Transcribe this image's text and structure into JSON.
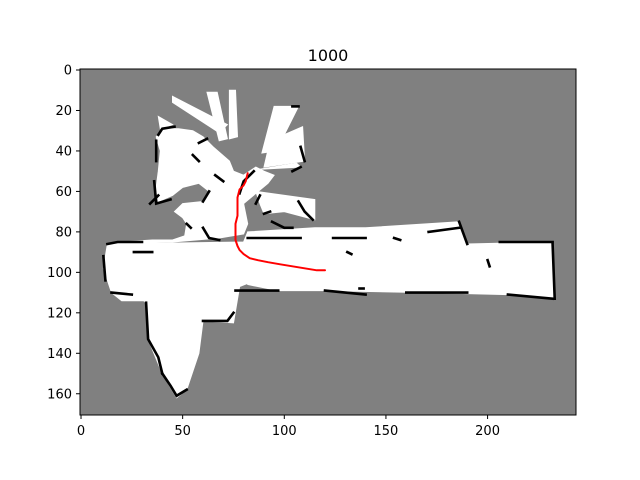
{
  "title": "1000",
  "chart_data": {
    "type": "heatmap",
    "title": "1000",
    "xlabel": "",
    "ylabel": "",
    "xlim": [
      -0.5,
      243.5
    ],
    "ylim": [
      170.5,
      -0.5
    ],
    "y_inverted": true,
    "x_ticks": [
      0,
      50,
      100,
      150,
      200
    ],
    "y_ticks": [
      0,
      20,
      40,
      60,
      80,
      100,
      120,
      140,
      160
    ],
    "grid": false,
    "colors": {
      "unknown": "#808080",
      "free": "#ffffff",
      "occupied": "#000000",
      "path": "#ff0000"
    },
    "free_regions": [
      [
        [
          13,
          86
        ],
        [
          45,
          85
        ],
        [
          68,
          83
        ],
        [
          80,
          81
        ],
        [
          82,
          76
        ],
        [
          80,
          66
        ],
        [
          86,
          61
        ],
        [
          92,
          56
        ],
        [
          95,
          52
        ],
        [
          90,
          50
        ],
        [
          86,
          48
        ],
        [
          80,
          52
        ],
        [
          75,
          50
        ],
        [
          73,
          45
        ],
        [
          65,
          38
        ],
        [
          60,
          33
        ],
        [
          55,
          30
        ],
        [
          48,
          29
        ],
        [
          40,
          29
        ],
        [
          37,
          33
        ],
        [
          39,
          40
        ],
        [
          38,
          50
        ],
        [
          37,
          58
        ],
        [
          38,
          65
        ],
        [
          45,
          62
        ],
        [
          50,
          58
        ],
        [
          58,
          56
        ],
        [
          63,
          60
        ],
        [
          60,
          65
        ],
        [
          50,
          66
        ],
        [
          46,
          70
        ],
        [
          50,
          73
        ],
        [
          52,
          76
        ],
        [
          51,
          82
        ],
        [
          45,
          84
        ],
        [
          35,
          84
        ],
        [
          20,
          85
        ],
        [
          13,
          86
        ]
      ],
      [
        [
          45,
          27
        ],
        [
          38,
          23
        ],
        [
          39,
          29
        ]
      ],
      [
        [
          45,
          13
        ],
        [
          72,
          27
        ],
        [
          68,
          31
        ],
        [
          45,
          16
        ]
      ],
      [
        [
          62,
          11
        ],
        [
          67,
          11
        ],
        [
          72,
          34
        ],
        [
          68,
          35
        ]
      ],
      [
        [
          73,
          10
        ],
        [
          76,
          10
        ],
        [
          77,
          33
        ],
        [
          73,
          34
        ]
      ],
      [
        [
          95,
          18
        ],
        [
          107,
          18
        ],
        [
          96,
          40
        ],
        [
          89,
          41
        ]
      ],
      [
        [
          93,
          35
        ],
        [
          109,
          28
        ],
        [
          110,
          45
        ],
        [
          90,
          48
        ]
      ],
      [
        [
          88,
          49
        ],
        [
          108,
          48
        ],
        [
          106,
          46
        ]
      ],
      [
        [
          86,
          60
        ],
        [
          115,
          64
        ],
        [
          115,
          74
        ],
        [
          100,
          70
        ],
        [
          90,
          71
        ],
        [
          88,
          66
        ]
      ],
      [
        [
          82,
          80
        ],
        [
          115,
          78
        ],
        [
          140,
          78
        ],
        [
          186,
          75
        ],
        [
          190,
          86
        ],
        [
          232,
          85
        ],
        [
          233,
          113
        ],
        [
          210,
          111
        ],
        [
          170,
          110
        ],
        [
          120,
          109
        ],
        [
          97,
          109
        ],
        [
          82,
          106
        ],
        [
          80,
          95
        ]
      ],
      [
        [
          13,
          86
        ],
        [
          80,
          85
        ],
        [
          82,
          80
        ],
        [
          83,
          105
        ],
        [
          78,
          107
        ],
        [
          75,
          125
        ],
        [
          60,
          124
        ],
        [
          58,
          140
        ],
        [
          52,
          158
        ],
        [
          47,
          162
        ],
        [
          40,
          150
        ],
        [
          33,
          133
        ],
        [
          32,
          114
        ],
        [
          20,
          114
        ],
        [
          15,
          110
        ],
        [
          11,
          98
        ],
        [
          13,
          86
        ]
      ],
      [
        [
          24,
          105
        ],
        [
          72,
          103
        ],
        [
          75,
          120
        ],
        [
          34,
          118
        ]
      ]
    ],
    "occupied_segments": [
      [
        [
          38,
          32
        ],
        [
          40,
          29
        ],
        [
          46,
          28
        ]
      ],
      [
        [
          37,
          35
        ],
        [
          37,
          45
        ]
      ],
      [
        [
          36,
          55
        ],
        [
          37,
          66
        ],
        [
          44,
          64
        ]
      ],
      [
        [
          38,
          62
        ],
        [
          34,
          66
        ]
      ],
      [
        [
          58,
          36
        ],
        [
          62,
          34
        ]
      ],
      [
        [
          55,
          42
        ],
        [
          58,
          45
        ]
      ],
      [
        [
          66,
          52
        ],
        [
          70,
          55
        ]
      ],
      [
        [
          63,
          60
        ],
        [
          60,
          65
        ]
      ],
      [
        [
          52,
          76
        ],
        [
          54,
          78
        ]
      ],
      [
        [
          60,
          78
        ],
        [
          63,
          83
        ],
        [
          68,
          84
        ]
      ],
      [
        [
          78,
          61
        ],
        [
          80,
          55
        ],
        [
          85,
          50
        ]
      ],
      [
        [
          86,
          66
        ],
        [
          88,
          62
        ]
      ],
      [
        [
          90,
          71
        ],
        [
          93,
          70
        ]
      ],
      [
        [
          94,
          75
        ],
        [
          100,
          78
        ],
        [
          104,
          78
        ]
      ],
      [
        [
          107,
          65
        ],
        [
          110,
          70
        ],
        [
          114,
          74
        ]
      ],
      [
        [
          104,
          18
        ],
        [
          107,
          18
        ]
      ],
      [
        [
          108,
          38
        ],
        [
          110,
          45
        ]
      ],
      [
        [
          104,
          50
        ],
        [
          108,
          48
        ]
      ],
      [
        [
          82,
          83
        ],
        [
          108,
          83
        ]
      ],
      [
        [
          124,
          83
        ],
        [
          140,
          83
        ]
      ],
      [
        [
          171,
          80
        ],
        [
          186,
          78
        ]
      ],
      [
        [
          186,
          75
        ],
        [
          190,
          86
        ]
      ],
      [
        [
          206,
          85
        ],
        [
          232,
          85
        ]
      ],
      [
        [
          232,
          86
        ],
        [
          233,
          113
        ]
      ],
      [
        [
          210,
          111
        ],
        [
          232,
          113
        ]
      ],
      [
        [
          120,
          109
        ],
        [
          140,
          111
        ]
      ],
      [
        [
          160,
          110
        ],
        [
          190,
          110
        ]
      ],
      [
        [
          76,
          109
        ],
        [
          97,
          109
        ]
      ],
      [
        [
          13,
          86
        ],
        [
          18,
          85
        ],
        [
          30,
          85
        ]
      ],
      [
        [
          11,
          92
        ],
        [
          12,
          104
        ]
      ],
      [
        [
          15,
          110
        ],
        [
          25,
          111
        ]
      ],
      [
        [
          32,
          115
        ],
        [
          33,
          133
        ],
        [
          38,
          142
        ],
        [
          40,
          150
        ]
      ],
      [
        [
          40,
          150
        ],
        [
          44,
          156
        ],
        [
          47,
          161
        ],
        [
          52,
          158
        ]
      ],
      [
        [
          60,
          124
        ],
        [
          72,
          124
        ],
        [
          75,
          120
        ]
      ],
      [
        [
          26,
          90
        ],
        [
          35,
          90
        ]
      ],
      [
        [
          154,
          83
        ],
        [
          157,
          84
        ]
      ],
      [
        [
          131,
          90
        ],
        [
          133,
          91
        ]
      ],
      [
        [
          200,
          94
        ],
        [
          201,
          97
        ]
      ],
      [
        [
          137,
          108
        ],
        [
          139,
          108
        ]
      ]
    ],
    "path_points": [
      [
        82,
        51
      ],
      [
        81,
        55
      ],
      [
        80,
        57
      ],
      [
        78,
        59
      ],
      [
        77,
        63
      ],
      [
        77,
        67
      ],
      [
        77,
        72
      ],
      [
        76,
        76
      ],
      [
        76,
        80
      ],
      [
        76,
        84
      ],
      [
        77,
        87
      ],
      [
        78,
        89
      ],
      [
        80,
        91
      ],
      [
        83,
        93
      ],
      [
        87,
        94
      ],
      [
        92,
        95
      ],
      [
        98,
        96
      ],
      [
        104,
        97
      ],
      [
        110,
        98
      ],
      [
        116,
        99
      ],
      [
        120,
        99
      ]
    ]
  }
}
